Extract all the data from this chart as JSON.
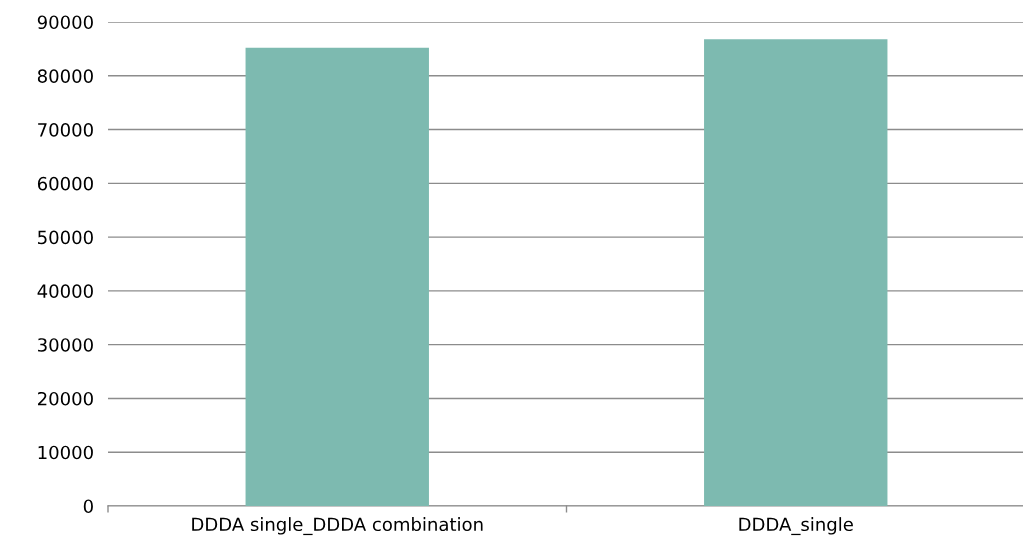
{
  "chart_data": {
    "type": "bar",
    "categories": [
      "DDDA single_DDDA combination",
      "DDDA_single"
    ],
    "values": [
      85200,
      86800
    ],
    "color": "#7dbab0",
    "ylim": [
      0,
      90000
    ],
    "yticks": [
      0,
      10000,
      20000,
      30000,
      40000,
      50000,
      60000,
      70000,
      80000,
      90000
    ],
    "grid": "y"
  }
}
